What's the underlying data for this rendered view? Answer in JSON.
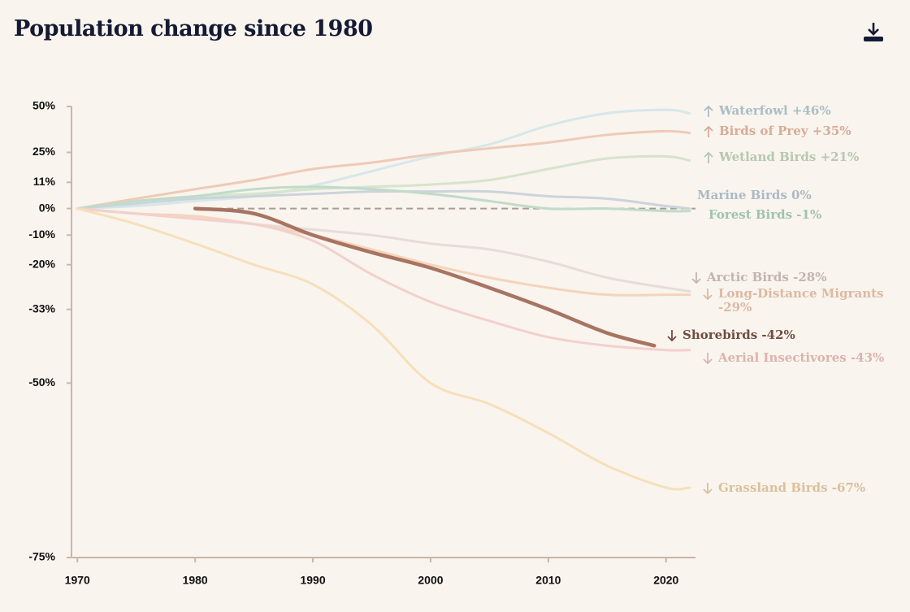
{
  "chart_data": {
    "type": "line",
    "title": "Population change since 1980",
    "xlim": [
      1969.5,
      2022.5
    ],
    "xticks": [
      1970,
      1980,
      1990,
      2000,
      2010,
      2020
    ],
    "ylim": [
      -75,
      50
    ],
    "yscale": "log-ratio",
    "yticks": [
      {
        "value": 50,
        "label": "50%"
      },
      {
        "value": 25,
        "label": "25%"
      },
      {
        "value": 11,
        "label": "11%"
      },
      {
        "value": 0,
        "label": "0%"
      },
      {
        "value": -10,
        "label": "-10%"
      },
      {
        "value": -20,
        "label": "-20%"
      },
      {
        "value": -33,
        "label": "-33%"
      },
      {
        "value": -50,
        "label": "-50%"
      },
      {
        "value": -75,
        "label": "-75%"
      }
    ],
    "highlight": "Shorebirds",
    "series": [
      {
        "name": "Waterfowl",
        "label": "Waterfowl +46%",
        "color": "#d6e7ea",
        "label_color": "#a9bec6",
        "x": [
          1970,
          1975,
          1980,
          1985,
          1990,
          1995,
          2000,
          2005,
          2010,
          2015,
          2020,
          2022
        ],
        "values": [
          0,
          1,
          3,
          5,
          9.5,
          16,
          23,
          29,
          39,
          46,
          48,
          46
        ]
      },
      {
        "name": "Birds of Prey",
        "label": "Birds of Prey +35%",
        "color": "#efcab6",
        "label_color": "#d8ab98",
        "x": [
          1970,
          1975,
          1980,
          1985,
          1990,
          1995,
          2000,
          2005,
          2010,
          2015,
          2020,
          2022
        ],
        "values": [
          0,
          4,
          8,
          12,
          17,
          20,
          24,
          27,
          30,
          34,
          36,
          35
        ]
      },
      {
        "name": "Wetland Birds",
        "label": "Wetland Birds +21%",
        "color": "#d6e4cd",
        "label_color": "#b6c8b0",
        "x": [
          1970,
          1975,
          1980,
          1985,
          1990,
          1995,
          2000,
          2005,
          2010,
          2015,
          2020,
          2022
        ],
        "values": [
          0,
          3,
          5,
          6,
          8,
          9,
          10,
          12,
          17,
          22,
          23,
          21
        ]
      },
      {
        "name": "Marine Birds",
        "label": "Marine Birds 0%",
        "color": "#cbd4dc",
        "label_color": "#adbac6",
        "x": [
          1970,
          1975,
          1980,
          1985,
          1990,
          1995,
          2000,
          2005,
          2010,
          2015,
          2020,
          2022
        ],
        "values": [
          0,
          2,
          4,
          5,
          6,
          7,
          7,
          7,
          5,
          4,
          1,
          0
        ]
      },
      {
        "name": "Forest Birds",
        "label": "Forest Birds -1%",
        "color": "#bfdcc9",
        "label_color": "#9fc3ad",
        "x": [
          1970,
          1975,
          1980,
          1985,
          1990,
          1995,
          2000,
          2005,
          2010,
          2015,
          2020,
          2022
        ],
        "values": [
          0,
          3,
          5,
          8,
          9,
          8,
          6,
          3,
          0,
          0,
          -1,
          -1
        ]
      },
      {
        "name": "Arctic Birds",
        "label": "Arctic Birds -28%",
        "color": "#e6dcdb",
        "label_color": "#c3b3b3",
        "x": [
          1970,
          1975,
          1980,
          1985,
          1990,
          1995,
          2000,
          2005,
          2010,
          2015,
          2020,
          2022
        ],
        "values": [
          0,
          -2,
          -4,
          -6,
          -8,
          -10,
          -13,
          -15,
          -19,
          -24,
          -27,
          -28
        ]
      },
      {
        "name": "Long-Distance Migrants",
        "label": "Long-Distance Migrants -29%",
        "color": "#f5d4ba",
        "label_color": "#dcb9a2",
        "x": [
          1970,
          1975,
          1980,
          1985,
          1990,
          1995,
          2000,
          2005,
          2010,
          2015,
          2020,
          2022
        ],
        "values": [
          0,
          -2,
          -3,
          -6,
          -10,
          -15,
          -20,
          -24,
          -27,
          -29,
          -29,
          -29
        ]
      },
      {
        "name": "Aerial Insectivores",
        "label": "Aerial Insectivores -43%",
        "color": "#f3d0cc",
        "label_color": "#dcb3ae",
        "x": [
          1970,
          1975,
          1980,
          1985,
          1990,
          1995,
          2000,
          2005,
          2010,
          2015,
          2020,
          2022
        ],
        "values": [
          0,
          -2,
          -4,
          -6,
          -12,
          -23,
          -31,
          -36,
          -40,
          -42,
          -43,
          -43
        ]
      },
      {
        "name": "Grassland Birds",
        "label": "Grassland Birds -67%",
        "color": "#f5e0ba",
        "label_color": "#d9c19a",
        "x": [
          1970,
          1975,
          1980,
          1985,
          1990,
          1995,
          2000,
          2005,
          2010,
          2015,
          2020,
          2022
        ],
        "values": [
          0,
          -6,
          -13,
          -20,
          -26,
          -37,
          -50,
          -54,
          -59,
          -64,
          -67,
          -67
        ]
      },
      {
        "name": "Shorebirds",
        "label": "Shorebirds -42%",
        "color": "#a87461",
        "label_color": "#6f4c3e",
        "x": [
          1980,
          1985,
          1990,
          1995,
          2000,
          2005,
          2010,
          2015,
          2019
        ],
        "values": [
          0,
          -2,
          -10,
          -16,
          -21,
          -27,
          -33,
          -39,
          -42
        ]
      }
    ]
  }
}
